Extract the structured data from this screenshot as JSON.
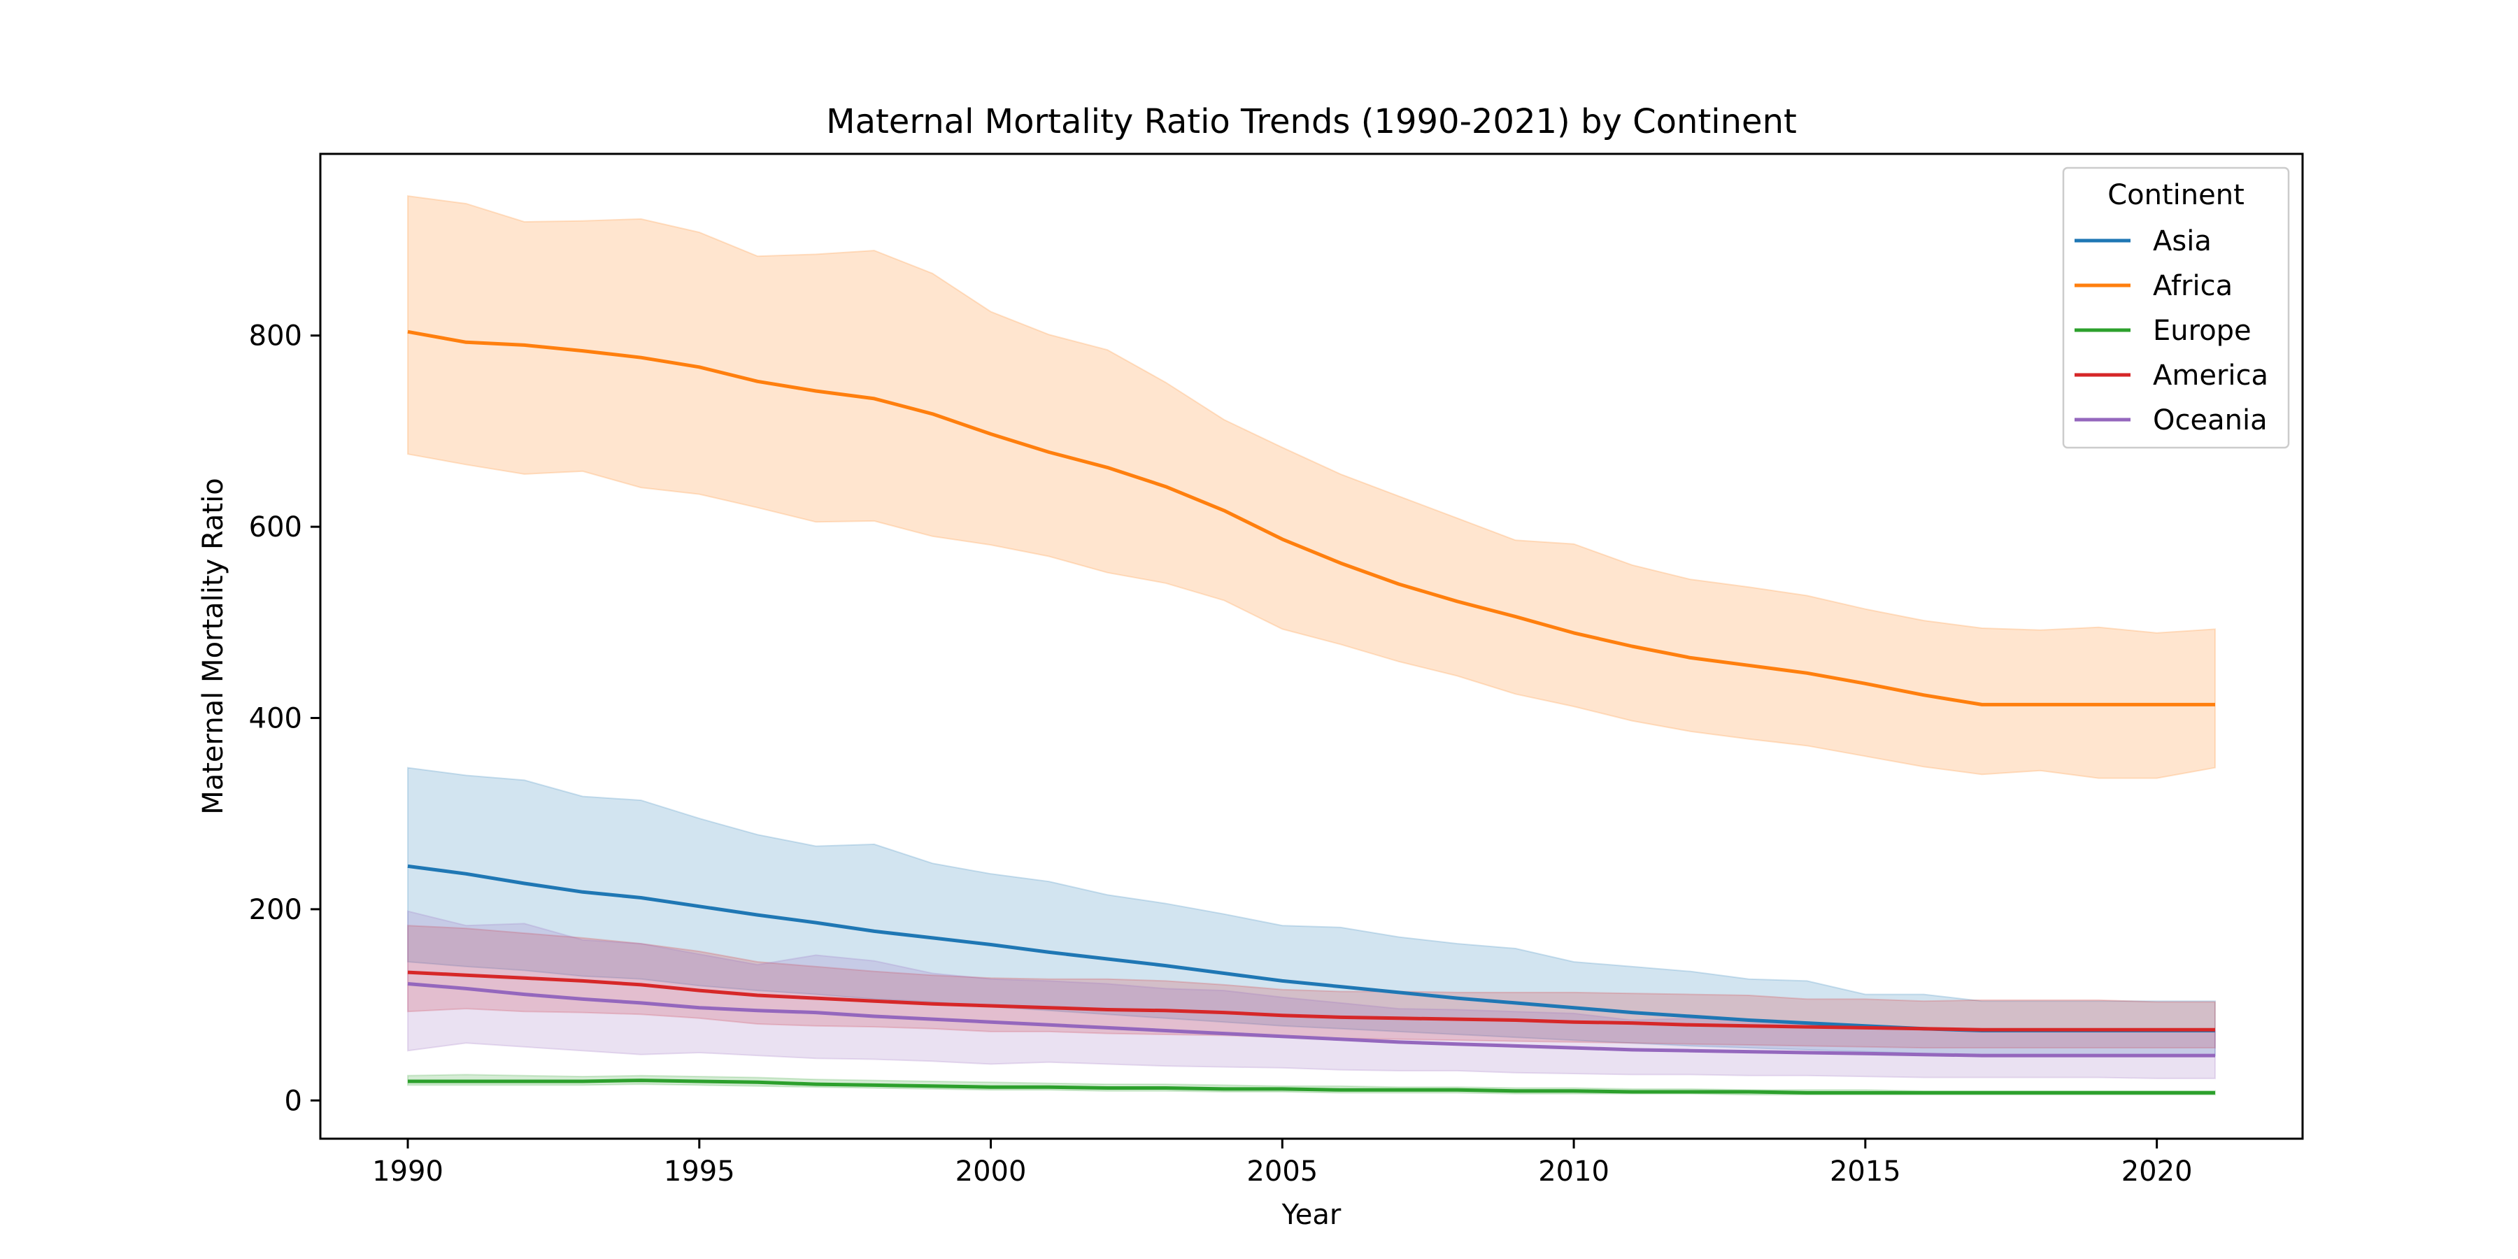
{
  "chart_data": {
    "type": "line",
    "title": "Maternal Mortality Ratio Trends (1990-2021) by Continent",
    "xlabel": "Year",
    "ylabel": "Maternal Mortality Ratio",
    "xlim": [
      1988.5,
      2022.5
    ],
    "ylim": [
      -40,
      990
    ],
    "x_ticks": [
      1990,
      1995,
      2000,
      2005,
      2010,
      2015,
      2020
    ],
    "y_ticks": [
      0,
      200,
      400,
      600,
      800
    ],
    "grid": false,
    "legend": {
      "title": "Continent",
      "placement": "top-right"
    },
    "x": [
      1990,
      1991,
      1992,
      1993,
      1994,
      1995,
      1996,
      1997,
      1998,
      1999,
      2000,
      2001,
      2002,
      2003,
      2004,
      2005,
      2006,
      2007,
      2008,
      2009,
      2010,
      2011,
      2012,
      2013,
      2014,
      2015,
      2016,
      2017,
      2018,
      2019,
      2020,
      2021
    ],
    "series": [
      {
        "name": "Asia",
        "color": "#1f77b4",
        "values": [
          245,
          237,
          227,
          218,
          212,
          203,
          194,
          186,
          177,
          170,
          163,
          155,
          148,
          141,
          133,
          125,
          119,
          113,
          107,
          102,
          97,
          92,
          88,
          84,
          81,
          78,
          75,
          73,
          73,
          73,
          73,
          73
        ],
        "lower": [
          145,
          140,
          136,
          130,
          127,
          120,
          115,
          111,
          106,
          103,
          98,
          94,
          90,
          86,
          82,
          78,
          75,
          72,
          69,
          66,
          63,
          60,
          57,
          55,
          53,
          51,
          49,
          47,
          47,
          47,
          47,
          47
        ],
        "upper": [
          348,
          340,
          335,
          318,
          314,
          295,
          278,
          266,
          268,
          248,
          237,
          229,
          215,
          206,
          195,
          183,
          181,
          171,
          164,
          159,
          145,
          140,
          135,
          127,
          125,
          111,
          111,
          104,
          104,
          104,
          104,
          104
        ]
      },
      {
        "name": "Africa",
        "color": "#ff7f0e",
        "values": [
          804,
          793,
          790,
          784,
          777,
          767,
          752,
          742,
          734,
          718,
          697,
          678,
          662,
          642,
          617,
          587,
          562,
          540,
          522,
          506,
          489,
          475,
          463,
          455,
          447,
          436,
          424,
          414,
          414,
          414,
          414,
          414
        ],
        "lower": [
          676,
          665,
          655,
          658,
          641,
          634,
          620,
          605,
          606,
          590,
          581,
          569,
          552,
          541,
          523,
          493,
          477,
          459,
          444,
          425,
          412,
          397,
          386,
          378,
          371,
          360,
          349,
          341,
          345,
          337,
          337,
          348
        ],
        "upper": [
          946,
          938,
          919,
          920,
          922,
          908,
          883,
          885,
          889,
          865,
          825,
          801,
          785,
          751,
          712,
          683,
          655,
          632,
          609,
          586,
          582,
          560,
          545,
          537,
          528,
          514,
          502,
          494,
          492,
          495,
          489,
          493
        ]
      },
      {
        "name": "Europe",
        "color": "#2ca02c",
        "values": [
          20,
          20,
          20,
          20,
          21,
          20,
          19,
          17,
          16,
          15,
          14,
          14,
          13,
          13,
          12,
          12,
          11,
          11,
          11,
          10,
          10,
          9,
          9,
          9,
          8,
          8,
          8,
          8,
          8,
          8,
          8,
          8
        ],
        "lower": [
          16,
          16,
          16,
          16,
          17,
          16,
          15,
          14,
          13,
          12,
          11,
          11,
          10,
          10,
          9,
          9,
          8,
          8,
          8,
          7,
          7,
          7,
          7,
          6,
          6,
          6,
          6,
          6,
          6,
          6,
          6,
          6
        ],
        "upper": [
          26,
          27,
          26,
          25,
          26,
          25,
          24,
          22,
          21,
          20,
          19,
          18,
          17,
          17,
          16,
          15,
          15,
          14,
          14,
          13,
          13,
          12,
          12,
          11,
          11,
          11,
          10,
          10,
          10,
          10,
          10,
          10
        ]
      },
      {
        "name": "America",
        "color": "#d62728",
        "values": [
          134,
          131,
          128,
          125,
          121,
          115,
          110,
          107,
          104,
          101,
          99,
          97,
          95,
          94,
          92,
          89,
          87,
          86,
          85,
          84,
          82,
          81,
          79,
          78,
          77,
          76,
          75,
          74,
          74,
          74,
          74,
          74
        ],
        "lower": [
          93,
          96,
          93,
          92,
          90,
          86,
          80,
          78,
          77,
          75,
          72,
          72,
          70,
          69,
          68,
          66,
          65,
          64,
          63,
          62,
          61,
          60,
          59,
          58,
          57,
          56,
          55,
          55,
          55,
          55,
          55,
          55
        ],
        "upper": [
          183,
          180,
          175,
          170,
          164,
          156,
          145,
          140,
          135,
          131,
          128,
          127,
          127,
          125,
          121,
          116,
          114,
          114,
          113,
          113,
          113,
          112,
          111,
          110,
          106,
          106,
          104,
          105,
          105,
          105,
          103,
          103
        ]
      },
      {
        "name": "Oceania",
        "color": "#9467bd",
        "values": [
          122,
          117,
          111,
          106,
          102,
          97,
          94,
          92,
          88,
          85,
          82,
          79,
          76,
          73,
          70,
          67,
          64,
          61,
          59,
          57,
          55,
          53,
          52,
          51,
          50,
          49,
          48,
          47,
          47,
          47,
          47,
          47
        ],
        "lower": [
          52,
          60,
          56,
          52,
          48,
          50,
          47,
          44,
          43,
          41,
          38,
          40,
          38,
          36,
          35,
          34,
          32,
          31,
          31,
          29,
          28,
          27,
          27,
          26,
          26,
          25,
          24,
          24,
          24,
          24,
          23,
          23
        ],
        "upper": [
          198,
          183,
          185,
          168,
          164,
          153,
          142,
          152,
          146,
          133,
          127,
          125,
          122,
          117,
          115,
          108,
          102,
          96,
          95,
          93,
          91,
          84,
          86,
          85,
          80,
          78,
          75,
          73,
          73,
          73,
          73,
          73
        ]
      }
    ]
  }
}
